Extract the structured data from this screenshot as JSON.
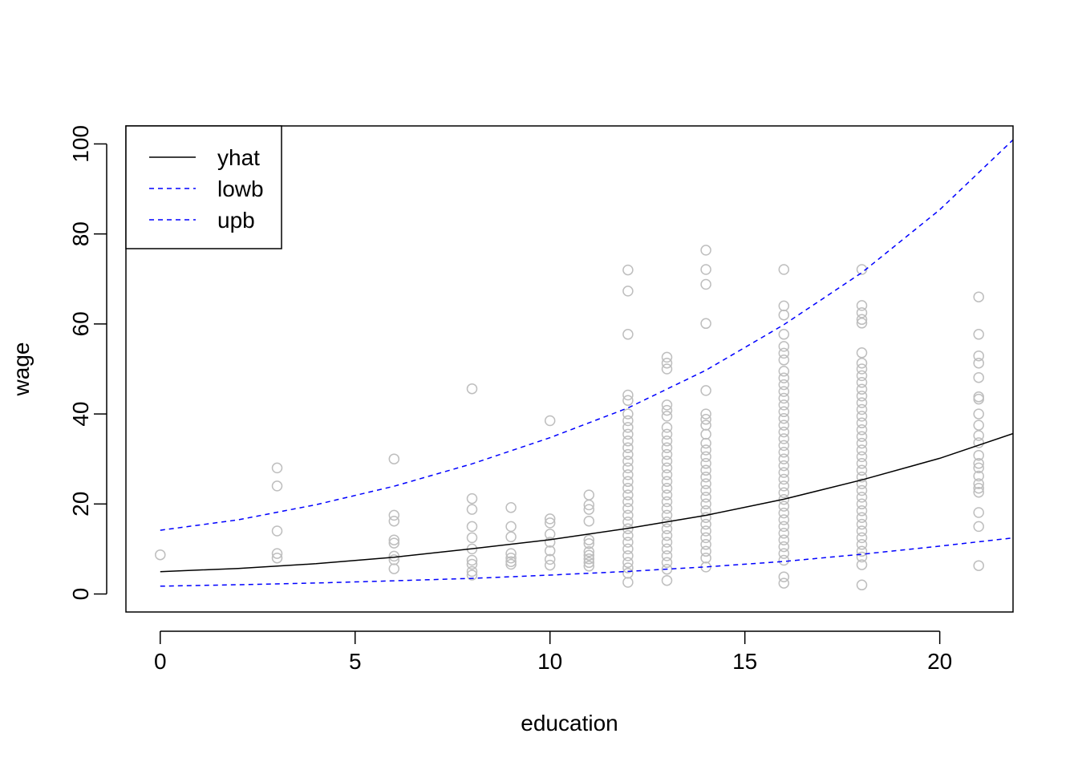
{
  "chart_data": {
    "type": "scatter",
    "title": "",
    "xlabel": "education",
    "ylabel": "wage",
    "xlim": [
      -0.88,
      21.88
    ],
    "ylim": [
      -4,
      104
    ],
    "xticks": [
      0,
      5,
      10,
      15,
      20
    ],
    "yticks": [
      0,
      20,
      40,
      60,
      80,
      100
    ],
    "grid": false,
    "legend": {
      "position": "top-left",
      "entries": [
        {
          "name": "yhat",
          "color": "#000000",
          "dash": "solid"
        },
        {
          "name": "lowb",
          "color": "#0000ff",
          "dash": "dashed"
        },
        {
          "name": "upb",
          "color": "#0000ff",
          "dash": "dashed"
        }
      ]
    },
    "points_color": "#bebebe",
    "points": [
      [
        0,
        8.7
      ],
      [
        3,
        28.0
      ],
      [
        3,
        24.0
      ],
      [
        3,
        14.0
      ],
      [
        3,
        9.0
      ],
      [
        3,
        8.0
      ],
      [
        6,
        30.0
      ],
      [
        6,
        17.5
      ],
      [
        6,
        16.2
      ],
      [
        6,
        12.0
      ],
      [
        6,
        11.3
      ],
      [
        6,
        8.4
      ],
      [
        6,
        7.6
      ],
      [
        6,
        5.6
      ],
      [
        8,
        45.6
      ],
      [
        8,
        21.2
      ],
      [
        8,
        18.8
      ],
      [
        8,
        15.0
      ],
      [
        8,
        12.5
      ],
      [
        8,
        10.0
      ],
      [
        8,
        7.5
      ],
      [
        8,
        6.6
      ],
      [
        8,
        5.0
      ],
      [
        8,
        4.2
      ],
      [
        9,
        19.2
      ],
      [
        9,
        15.0
      ],
      [
        9,
        12.7
      ],
      [
        9,
        9.0
      ],
      [
        9,
        8.0
      ],
      [
        9,
        7.2
      ],
      [
        9,
        6.6
      ],
      [
        10,
        38.5
      ],
      [
        10,
        16.7
      ],
      [
        10,
        15.8
      ],
      [
        10,
        13.3
      ],
      [
        10,
        11.5
      ],
      [
        10,
        9.6
      ],
      [
        10,
        7.7
      ],
      [
        10,
        6.4
      ],
      [
        11,
        22.0
      ],
      [
        11,
        19.8
      ],
      [
        11,
        18.8
      ],
      [
        11,
        16.2
      ],
      [
        11,
        12.0
      ],
      [
        11,
        11.2
      ],
      [
        11,
        9.4
      ],
      [
        11,
        8.6
      ],
      [
        11,
        7.8
      ],
      [
        11,
        7.0
      ],
      [
        11,
        6.2
      ],
      [
        12,
        72.0
      ],
      [
        12,
        67.3
      ],
      [
        12,
        57.7
      ],
      [
        12,
        44.2
      ],
      [
        12,
        43.0
      ],
      [
        12,
        40.0
      ],
      [
        12,
        38.5
      ],
      [
        12,
        37.0
      ],
      [
        12,
        35.5
      ],
      [
        12,
        34.0
      ],
      [
        12,
        32.5
      ],
      [
        12,
        31.0
      ],
      [
        12,
        29.5
      ],
      [
        12,
        28.0
      ],
      [
        12,
        26.5
      ],
      [
        12,
        25.0
      ],
      [
        12,
        23.5
      ],
      [
        12,
        22.0
      ],
      [
        12,
        20.5
      ],
      [
        12,
        19.0
      ],
      [
        12,
        17.5
      ],
      [
        12,
        16.0
      ],
      [
        12,
        14.5
      ],
      [
        12,
        13.0
      ],
      [
        12,
        11.5
      ],
      [
        12,
        10.0
      ],
      [
        12,
        8.5
      ],
      [
        12,
        7.0
      ],
      [
        12,
        5.8
      ],
      [
        12,
        4.6
      ],
      [
        12,
        2.6
      ],
      [
        13,
        52.6
      ],
      [
        13,
        51.3
      ],
      [
        13,
        50.0
      ],
      [
        13,
        42.0
      ],
      [
        13,
        40.8
      ],
      [
        13,
        39.5
      ],
      [
        13,
        37.0
      ],
      [
        13,
        35.5
      ],
      [
        13,
        34.0
      ],
      [
        13,
        32.5
      ],
      [
        13,
        31.0
      ],
      [
        13,
        29.5
      ],
      [
        13,
        28.0
      ],
      [
        13,
        26.5
      ],
      [
        13,
        25.0
      ],
      [
        13,
        23.5
      ],
      [
        13,
        22.0
      ],
      [
        13,
        20.5
      ],
      [
        13,
        19.0
      ],
      [
        13,
        17.5
      ],
      [
        13,
        16.0
      ],
      [
        13,
        14.5
      ],
      [
        13,
        13.0
      ],
      [
        13,
        11.5
      ],
      [
        13,
        10.0
      ],
      [
        13,
        8.5
      ],
      [
        13,
        7.0
      ],
      [
        13,
        5.5
      ],
      [
        13,
        3.0
      ],
      [
        14,
        76.4
      ],
      [
        14,
        72.1
      ],
      [
        14,
        68.8
      ],
      [
        14,
        60.1
      ],
      [
        14,
        45.2
      ],
      [
        14,
        40.0
      ],
      [
        14,
        38.8
      ],
      [
        14,
        37.5
      ],
      [
        14,
        35.5
      ],
      [
        14,
        33.5
      ],
      [
        14,
        32.0
      ],
      [
        14,
        30.5
      ],
      [
        14,
        29.0
      ],
      [
        14,
        27.5
      ],
      [
        14,
        26.0
      ],
      [
        14,
        24.5
      ],
      [
        14,
        23.0
      ],
      [
        14,
        21.5
      ],
      [
        14,
        20.0
      ],
      [
        14,
        18.5
      ],
      [
        14,
        17.0
      ],
      [
        14,
        15.5
      ],
      [
        14,
        14.0
      ],
      [
        14,
        12.5
      ],
      [
        14,
        11.0
      ],
      [
        14,
        9.5
      ],
      [
        14,
        8.0
      ],
      [
        14,
        6.0
      ],
      [
        16,
        72.1
      ],
      [
        16,
        64.0
      ],
      [
        16,
        62.0
      ],
      [
        16,
        57.7
      ],
      [
        16,
        55.0
      ],
      [
        16,
        53.5
      ],
      [
        16,
        52.0
      ],
      [
        16,
        49.5
      ],
      [
        16,
        48.0
      ],
      [
        16,
        46.5
      ],
      [
        16,
        45.0
      ],
      [
        16,
        43.5
      ],
      [
        16,
        42.0
      ],
      [
        16,
        40.5
      ],
      [
        16,
        39.0
      ],
      [
        16,
        37.5
      ],
      [
        16,
        36.0
      ],
      [
        16,
        34.5
      ],
      [
        16,
        33.0
      ],
      [
        16,
        31.5
      ],
      [
        16,
        30.0
      ],
      [
        16,
        28.5
      ],
      [
        16,
        27.0
      ],
      [
        16,
        25.5
      ],
      [
        16,
        24.0
      ],
      [
        16,
        22.5
      ],
      [
        16,
        21.0
      ],
      [
        16,
        19.5
      ],
      [
        16,
        18.0
      ],
      [
        16,
        16.5
      ],
      [
        16,
        15.0
      ],
      [
        16,
        13.5
      ],
      [
        16,
        12.0
      ],
      [
        16,
        10.5
      ],
      [
        16,
        9.0
      ],
      [
        16,
        7.5
      ],
      [
        16,
        3.8
      ],
      [
        16,
        2.4
      ],
      [
        18,
        72.1
      ],
      [
        18,
        64.1
      ],
      [
        18,
        62.5
      ],
      [
        18,
        61.0
      ],
      [
        18,
        60.2
      ],
      [
        18,
        53.6
      ],
      [
        18,
        51.3
      ],
      [
        18,
        50.0
      ],
      [
        18,
        48.5
      ],
      [
        18,
        47.0
      ],
      [
        18,
        45.5
      ],
      [
        18,
        44.0
      ],
      [
        18,
        42.5
      ],
      [
        18,
        41.0
      ],
      [
        18,
        39.5
      ],
      [
        18,
        38.0
      ],
      [
        18,
        36.5
      ],
      [
        18,
        35.0
      ],
      [
        18,
        33.5
      ],
      [
        18,
        32.0
      ],
      [
        18,
        30.5
      ],
      [
        18,
        29.0
      ],
      [
        18,
        27.5
      ],
      [
        18,
        26.0
      ],
      [
        18,
        24.5
      ],
      [
        18,
        23.0
      ],
      [
        18,
        21.5
      ],
      [
        18,
        20.0
      ],
      [
        18,
        18.5
      ],
      [
        18,
        17.0
      ],
      [
        18,
        15.5
      ],
      [
        18,
        14.0
      ],
      [
        18,
        12.5
      ],
      [
        18,
        11.0
      ],
      [
        18,
        9.5
      ],
      [
        18,
        8.2
      ],
      [
        18,
        6.5
      ],
      [
        18,
        2.0
      ],
      [
        21,
        66.0
      ],
      [
        21,
        57.7
      ],
      [
        21,
        52.9
      ],
      [
        21,
        51.3
      ],
      [
        21,
        48.1
      ],
      [
        21,
        43.8
      ],
      [
        21,
        43.3
      ],
      [
        21,
        40.0
      ],
      [
        21,
        37.5
      ],
      [
        21,
        35.2
      ],
      [
        21,
        33.6
      ],
      [
        21,
        30.8
      ],
      [
        21,
        29.0
      ],
      [
        21,
        28.0
      ],
      [
        21,
        26.2
      ],
      [
        21,
        24.5
      ],
      [
        21,
        23.5
      ],
      [
        21,
        22.6
      ],
      [
        21,
        18.1
      ],
      [
        21,
        15.0
      ],
      [
        21,
        6.3
      ]
    ],
    "series": [
      {
        "name": "yhat",
        "color": "#000000",
        "dash": "solid",
        "x": [
          0,
          2,
          4,
          6,
          8,
          10,
          12,
          14,
          16,
          18,
          20,
          22
        ],
        "y": [
          4.97,
          5.68,
          6.72,
          8.18,
          10.06,
          12.05,
          14.59,
          17.47,
          21.05,
          25.36,
          30.14,
          36.0
        ]
      },
      {
        "name": "lowb",
        "color": "#0000ff",
        "dash": "dashed",
        "x": [
          0,
          2,
          4,
          6,
          8,
          10,
          12,
          14,
          16,
          18,
          20,
          22
        ],
        "y": [
          1.74,
          2.06,
          2.44,
          2.93,
          3.46,
          4.19,
          5.02,
          6.01,
          7.23,
          8.84,
          10.64,
          12.57
        ]
      },
      {
        "name": "upb",
        "color": "#0000ff",
        "dash": "dashed",
        "x": [
          0,
          2,
          4,
          6,
          8,
          10,
          12,
          14,
          16,
          18,
          20,
          22
        ],
        "y": [
          14.16,
          16.47,
          19.85,
          23.95,
          28.91,
          34.73,
          41.34,
          49.72,
          59.83,
          71.41,
          85.37,
          101.9
        ]
      }
    ]
  }
}
